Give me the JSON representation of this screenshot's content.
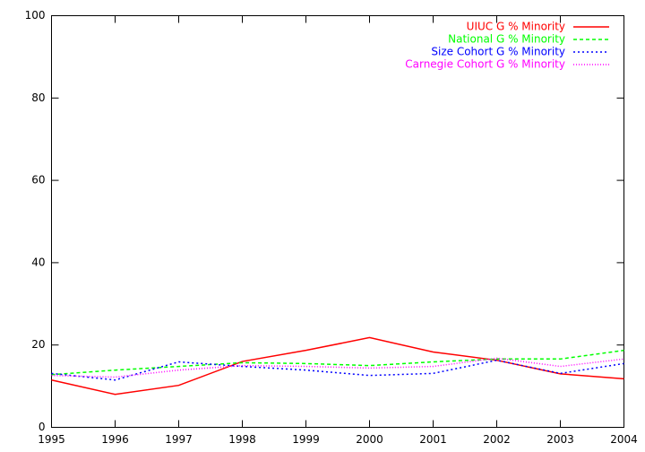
{
  "chart_data": {
    "type": "line",
    "x": [
      1995,
      1996,
      1997,
      1998,
      1999,
      2000,
      2001,
      2002,
      2003,
      2004
    ],
    "series": [
      {
        "name": "UIUC G % Minority",
        "color": "#ff0000",
        "values": [
          11.5,
          8,
          10.2,
          16,
          18.7,
          21.8,
          18.3,
          16.3,
          13,
          11.8
        ]
      },
      {
        "name": "National G % Minority",
        "color": "#00ff00",
        "values": [
          12.8,
          13.9,
          14.8,
          15.7,
          15.5,
          15.0,
          15.9,
          16.6,
          16.6,
          18.7
        ]
      },
      {
        "name": "Size Cohort G % Minority",
        "color": "#0000ff",
        "values": [
          13.1,
          11.5,
          15.9,
          14.8,
          13.9,
          12.6,
          13.1,
          16.3,
          13.1,
          15.5
        ]
      },
      {
        "name": "Carnegie Cohort G % Minority",
        "color": "#ff00ff",
        "values": [
          12.6,
          12.2,
          13.9,
          15,
          14.8,
          14.4,
          14.8,
          16.8,
          14.8,
          16.6
        ]
      }
    ],
    "xlim": [
      1995,
      2004
    ],
    "xticks": [
      1995,
      1996,
      1997,
      1998,
      1999,
      2000,
      2001,
      2002,
      2003,
      2004
    ],
    "ylim": [
      0,
      100
    ],
    "yticks": [
      0,
      20,
      40,
      60,
      80,
      100
    ],
    "legend": "top-right"
  }
}
